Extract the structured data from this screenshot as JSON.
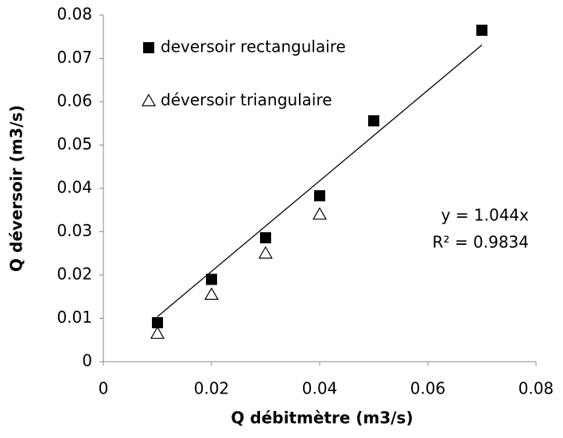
{
  "chart_data": {
    "type": "scatter",
    "xlabel": "Q débitmètre (m3/s)",
    "ylabel": "Q déversoir (m3/s)",
    "xlim": [
      0,
      0.08
    ],
    "xticks": [
      0,
      0.02,
      0.04,
      0.06,
      0.08
    ],
    "ylim": [
      0,
      0.08
    ],
    "yticks": [
      0,
      0.01,
      0.02,
      0.03,
      0.04,
      0.05,
      0.06,
      0.07,
      0.08
    ],
    "series": [
      {
        "name": "deversoir rectangulaire",
        "color": "#000000",
        "marker": "square",
        "x": [
          0.01,
          0.02,
          0.03,
          0.04,
          0.05,
          0.07
        ],
        "values": [
          0.009,
          0.019,
          0.0286,
          0.0383,
          0.0556,
          0.0765
        ]
      },
      {
        "name": "déversoir triangulaire",
        "color": "#000000",
        "marker": "triangle",
        "x": [
          0.01,
          0.02,
          0.03,
          0.04
        ],
        "values": [
          0.0065,
          0.0155,
          0.025,
          0.034
        ]
      }
    ],
    "trendline": {
      "x": [
        0.01,
        0.07
      ],
      "values": [
        0.0104,
        0.0731
      ]
    },
    "annotations": [
      "y = 1.044x",
      "R² = 0.9834"
    ],
    "legend": "upper left"
  }
}
